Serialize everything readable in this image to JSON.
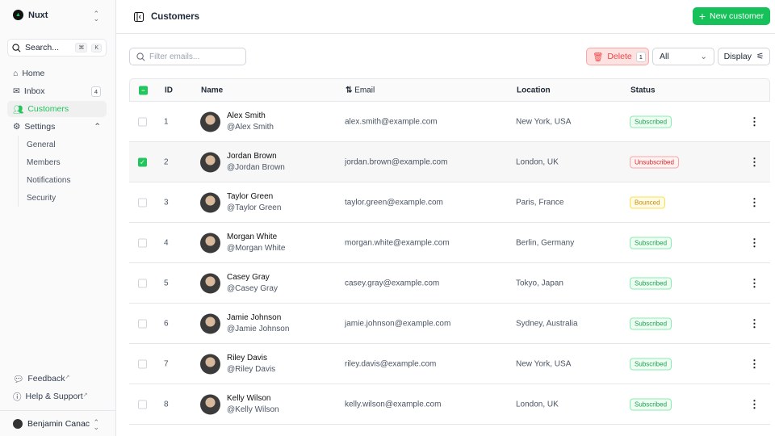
{
  "sidebar": {
    "brand": "Nuxt",
    "search": {
      "placeholder": "Search...",
      "kbd": [
        "⌘",
        "K"
      ]
    },
    "items": [
      {
        "label": "Home",
        "icon": "home-icon"
      },
      {
        "label": "Inbox",
        "icon": "inbox-icon",
        "badge": "4"
      },
      {
        "label": "Customers",
        "icon": "users-icon",
        "active": true
      },
      {
        "label": "Settings",
        "icon": "gear-icon"
      }
    ],
    "settings_sub": [
      "General",
      "Members",
      "Notifications",
      "Security"
    ],
    "footer": [
      {
        "label": "Feedback",
        "icon": "chat-icon"
      },
      {
        "label": "Help & Support",
        "icon": "info-icon"
      }
    ],
    "user": "Benjamin Canac"
  },
  "header": {
    "title": "Customers",
    "new_button": "New customer"
  },
  "toolbar": {
    "filter_placeholder": "Filter emails...",
    "delete_label": "Delete",
    "delete_count": "1",
    "status_select": "All",
    "display_label": "Display"
  },
  "table": {
    "columns": [
      "ID",
      "Name",
      "Email",
      "Location",
      "Status"
    ],
    "rows": [
      {
        "id": "1",
        "name": "Alex Smith",
        "handle": "@Alex Smith",
        "email": "alex.smith@example.com",
        "location": "New York, USA",
        "status": "Subscribed",
        "checked": false
      },
      {
        "id": "2",
        "name": "Jordan Brown",
        "handle": "@Jordan Brown",
        "email": "jordan.brown@example.com",
        "location": "London, UK",
        "status": "Unsubscribed",
        "checked": true
      },
      {
        "id": "3",
        "name": "Taylor Green",
        "handle": "@Taylor Green",
        "email": "taylor.green@example.com",
        "location": "Paris, France",
        "status": "Bounced",
        "checked": false
      },
      {
        "id": "4",
        "name": "Morgan White",
        "handle": "@Morgan White",
        "email": "morgan.white@example.com",
        "location": "Berlin, Germany",
        "status": "Subscribed",
        "checked": false
      },
      {
        "id": "5",
        "name": "Casey Gray",
        "handle": "@Casey Gray",
        "email": "casey.gray@example.com",
        "location": "Tokyo, Japan",
        "status": "Subscribed",
        "checked": false
      },
      {
        "id": "6",
        "name": "Jamie Johnson",
        "handle": "@Jamie Johnson",
        "email": "jamie.johnson@example.com",
        "location": "Sydney, Australia",
        "status": "Subscribed",
        "checked": false
      },
      {
        "id": "7",
        "name": "Riley Davis",
        "handle": "@Riley Davis",
        "email": "riley.davis@example.com",
        "location": "New York, USA",
        "status": "Subscribed",
        "checked": false
      },
      {
        "id": "8",
        "name": "Kelly Wilson",
        "handle": "@Kelly Wilson",
        "email": "kelly.wilson@example.com",
        "location": "London, UK",
        "status": "Subscribed",
        "checked": false
      }
    ]
  },
  "colors": {
    "accent": "#22c55e",
    "danger": "#ef4444"
  }
}
